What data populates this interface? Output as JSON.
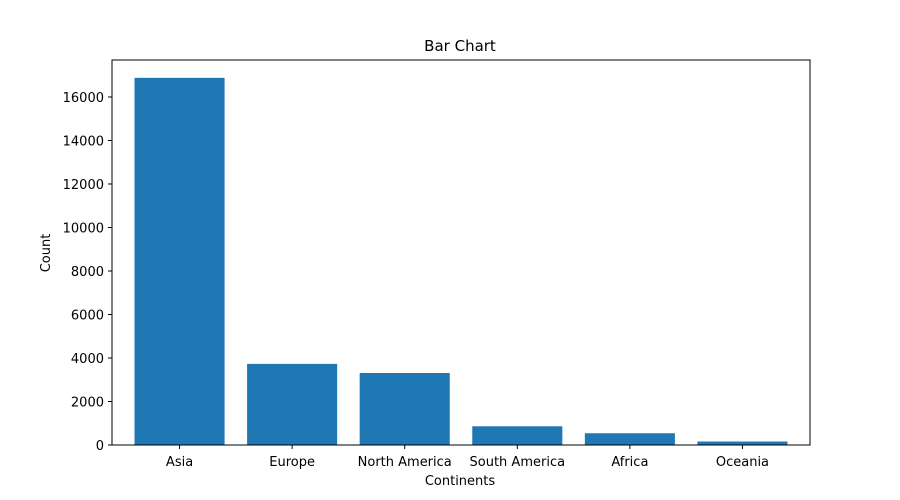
{
  "chart_data": {
    "type": "bar",
    "title": "Bar Chart",
    "xlabel": "Continents",
    "ylabel": "Count",
    "categories": [
      "Asia",
      "Europe",
      "North America",
      "South America",
      "Africa",
      "Oceania"
    ],
    "values": [
      16880,
      3730,
      3310,
      860,
      540,
      160
    ],
    "ylim": [
      0,
      17700
    ],
    "yticks": [
      0,
      2000,
      4000,
      6000,
      8000,
      10000,
      12000,
      14000,
      16000
    ],
    "bar_color": "#1f77b4",
    "grid": false,
    "legend": "none"
  }
}
